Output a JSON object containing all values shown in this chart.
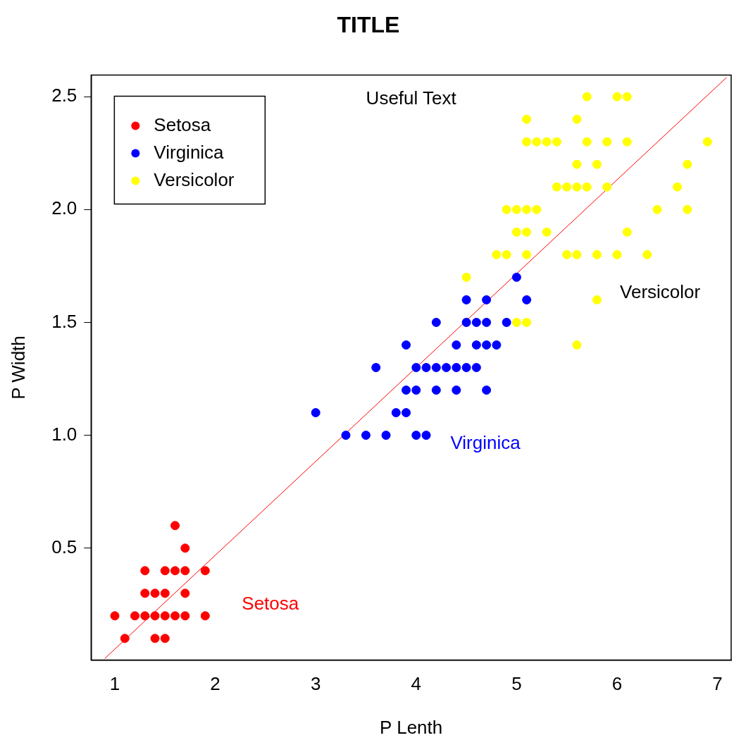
{
  "chart_data": {
    "type": "scatter",
    "title": "TITLE",
    "xlabel": "P Lenth",
    "ylabel": "P Width",
    "xlim": [
      0.764,
      7.136
    ],
    "xticks": [
      1,
      2,
      3,
      4,
      5,
      6,
      7
    ],
    "ylim": [
      0.004,
      2.596
    ],
    "yticks": [
      0.5,
      {
        "value": 1,
        "label": "1.0"
      },
      1.5,
      {
        "value": 2,
        "label": "2.0"
      },
      2.5
    ],
    "grid": false,
    "legend": "top left",
    "marker": "circle",
    "series": [
      {
        "name": "Setosa",
        "color": "#ff0000",
        "x": [
          1.0,
          1.1,
          1.2,
          1.3,
          1.3,
          1.3,
          1.4,
          1.4,
          1.4,
          1.5,
          1.5,
          1.5,
          1.5,
          1.6,
          1.6,
          1.6,
          1.7,
          1.7,
          1.7,
          1.7,
          1.9,
          1.9
        ],
        "values": [
          0.2,
          0.1,
          0.2,
          0.2,
          0.3,
          0.4,
          0.1,
          0.2,
          0.3,
          0.1,
          0.2,
          0.3,
          0.4,
          0.2,
          0.4,
          0.6,
          0.2,
          0.3,
          0.4,
          0.5,
          0.2,
          0.4
        ]
      },
      {
        "name": "Virginica",
        "color": "#0000ff",
        "x": [
          3.0,
          3.3,
          3.5,
          3.6,
          3.7,
          3.8,
          3.9,
          3.9,
          3.9,
          4.0,
          4.0,
          4.0,
          4.1,
          4.1,
          4.2,
          4.2,
          4.2,
          4.3,
          4.4,
          4.4,
          4.4,
          4.5,
          4.5,
          4.5,
          4.6,
          4.6,
          4.6,
          4.7,
          4.7,
          4.7,
          4.7,
          4.8,
          4.9,
          5.0,
          5.1
        ],
        "values": [
          1.1,
          1.0,
          1.0,
          1.3,
          1.0,
          1.1,
          1.1,
          1.2,
          1.4,
          1.0,
          1.2,
          1.3,
          1.0,
          1.3,
          1.2,
          1.3,
          1.5,
          1.3,
          1.2,
          1.3,
          1.4,
          1.3,
          1.5,
          1.6,
          1.3,
          1.4,
          1.5,
          1.2,
          1.4,
          1.5,
          1.6,
          1.4,
          1.5,
          1.7,
          1.6
        ]
      },
      {
        "name": "Versicolor",
        "color": "#ffff00",
        "x": [
          4.5,
          4.8,
          4.9,
          5.0,
          5.1,
          4.9,
          5.0,
          5.1,
          5.2,
          5.0,
          5.1,
          5.3,
          5.1,
          5.1,
          5.2,
          5.3,
          5.4,
          5.1,
          5.4,
          5.5,
          5.6,
          5.7,
          5.5,
          5.6,
          5.6,
          5.6,
          5.6,
          5.7,
          5.7,
          5.8,
          5.8,
          5.8,
          5.9,
          5.9,
          6.0,
          6.0,
          6.1,
          6.1,
          6.1,
          6.3,
          6.4,
          6.6,
          6.7,
          6.7,
          6.9
        ],
        "values": [
          1.7,
          1.8,
          1.8,
          1.5,
          1.5,
          2.0,
          2.0,
          2.0,
          2.0,
          1.9,
          1.9,
          1.9,
          1.8,
          2.3,
          2.3,
          2.3,
          2.3,
          2.4,
          2.1,
          2.1,
          2.1,
          2.1,
          1.8,
          1.8,
          2.2,
          2.4,
          1.4,
          2.3,
          2.5,
          2.2,
          1.8,
          1.6,
          2.3,
          2.1,
          2.5,
          1.8,
          2.5,
          2.3,
          1.9,
          1.8,
          2.0,
          2.1,
          2.2,
          2.0,
          2.3
        ]
      },
      {
        "type": "line",
        "color": "#ff0000",
        "marker": "none",
        "x": [
          0.9,
          7.09
        ],
        "values": [
          0.011,
          2.585
        ]
      }
    ],
    "annotations": [
      "Useful Text",
      "Setosa",
      "Virginica",
      "Versicolor"
    ]
  }
}
